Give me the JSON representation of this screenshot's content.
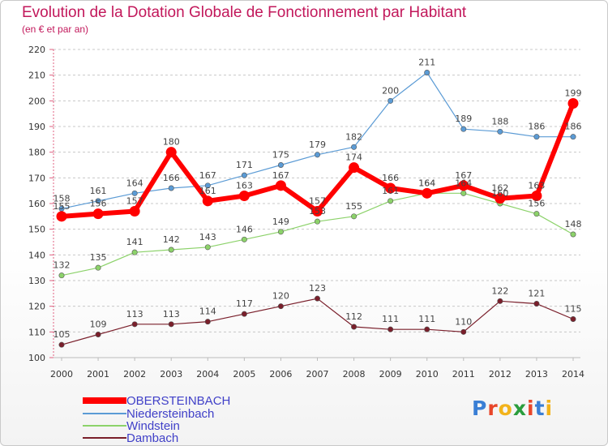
{
  "chart_data": {
    "type": "line",
    "title": "Evolution de la Dotation Globale de Fonctionnement par Habitant",
    "subtitle": "(en € et par an)",
    "x": [
      2000,
      2001,
      2002,
      2003,
      2004,
      2005,
      2006,
      2007,
      2008,
      2009,
      2010,
      2011,
      2012,
      2013,
      2014
    ],
    "x_labels": [
      "2000",
      "2001",
      "2002",
      "2003",
      "2004",
      "2005",
      "2006",
      "2007",
      "2008",
      "2009",
      "2010",
      "2011",
      "2012",
      "2013",
      "2014"
    ],
    "ylim": [
      100,
      220
    ],
    "yticks": [
      100,
      110,
      120,
      130,
      140,
      150,
      160,
      170,
      180,
      190,
      200,
      210,
      220
    ],
    "grid": "horizontal dashed",
    "legend_position": "bottom-left",
    "series": [
      {
        "name": "Niedersteinbach",
        "color": "#5b9bd5",
        "width": 1.2,
        "values": [
          158,
          161,
          164,
          166,
          167,
          171,
          175,
          179,
          182,
          200,
          211,
          189,
          188,
          186,
          186
        ]
      },
      {
        "name": "Windstein",
        "color": "#8cd26a",
        "width": 1.2,
        "values": [
          132,
          135,
          141,
          142,
          143,
          146,
          149,
          153,
          155,
          161,
          164,
          164,
          160,
          156,
          148
        ]
      },
      {
        "name": "Dambach",
        "color": "#7a1f2b",
        "width": 1.2,
        "values": [
          105,
          109,
          113,
          113,
          114,
          117,
          120,
          123,
          112,
          111,
          111,
          110,
          122,
          121,
          115
        ]
      },
      {
        "name": "OBERSTEINBACH",
        "color": "#ff0000",
        "width": 6,
        "values": [
          155,
          156,
          157,
          180,
          161,
          163,
          167,
          157,
          174,
          166,
          164,
          167,
          162,
          163,
          199
        ]
      }
    ]
  },
  "legend": [
    {
      "label": "OBERSTEINBACH",
      "color": "#ff0000"
    },
    {
      "label": "Niedersteinbach",
      "color": "#5b9bd5"
    },
    {
      "label": "Windstein",
      "color": "#8cd26a"
    },
    {
      "label": "Dambach",
      "color": "#7a1f2b"
    }
  ],
  "logo": {
    "letters": [
      "P",
      "r",
      "o",
      "x",
      "i",
      "t",
      "i"
    ],
    "colors": [
      "#3a7fd5",
      "#e8462a",
      "#f2b31b",
      "#2a9d3c",
      "#e8462a",
      "#3a7fd5",
      "#f2b31b"
    ]
  }
}
